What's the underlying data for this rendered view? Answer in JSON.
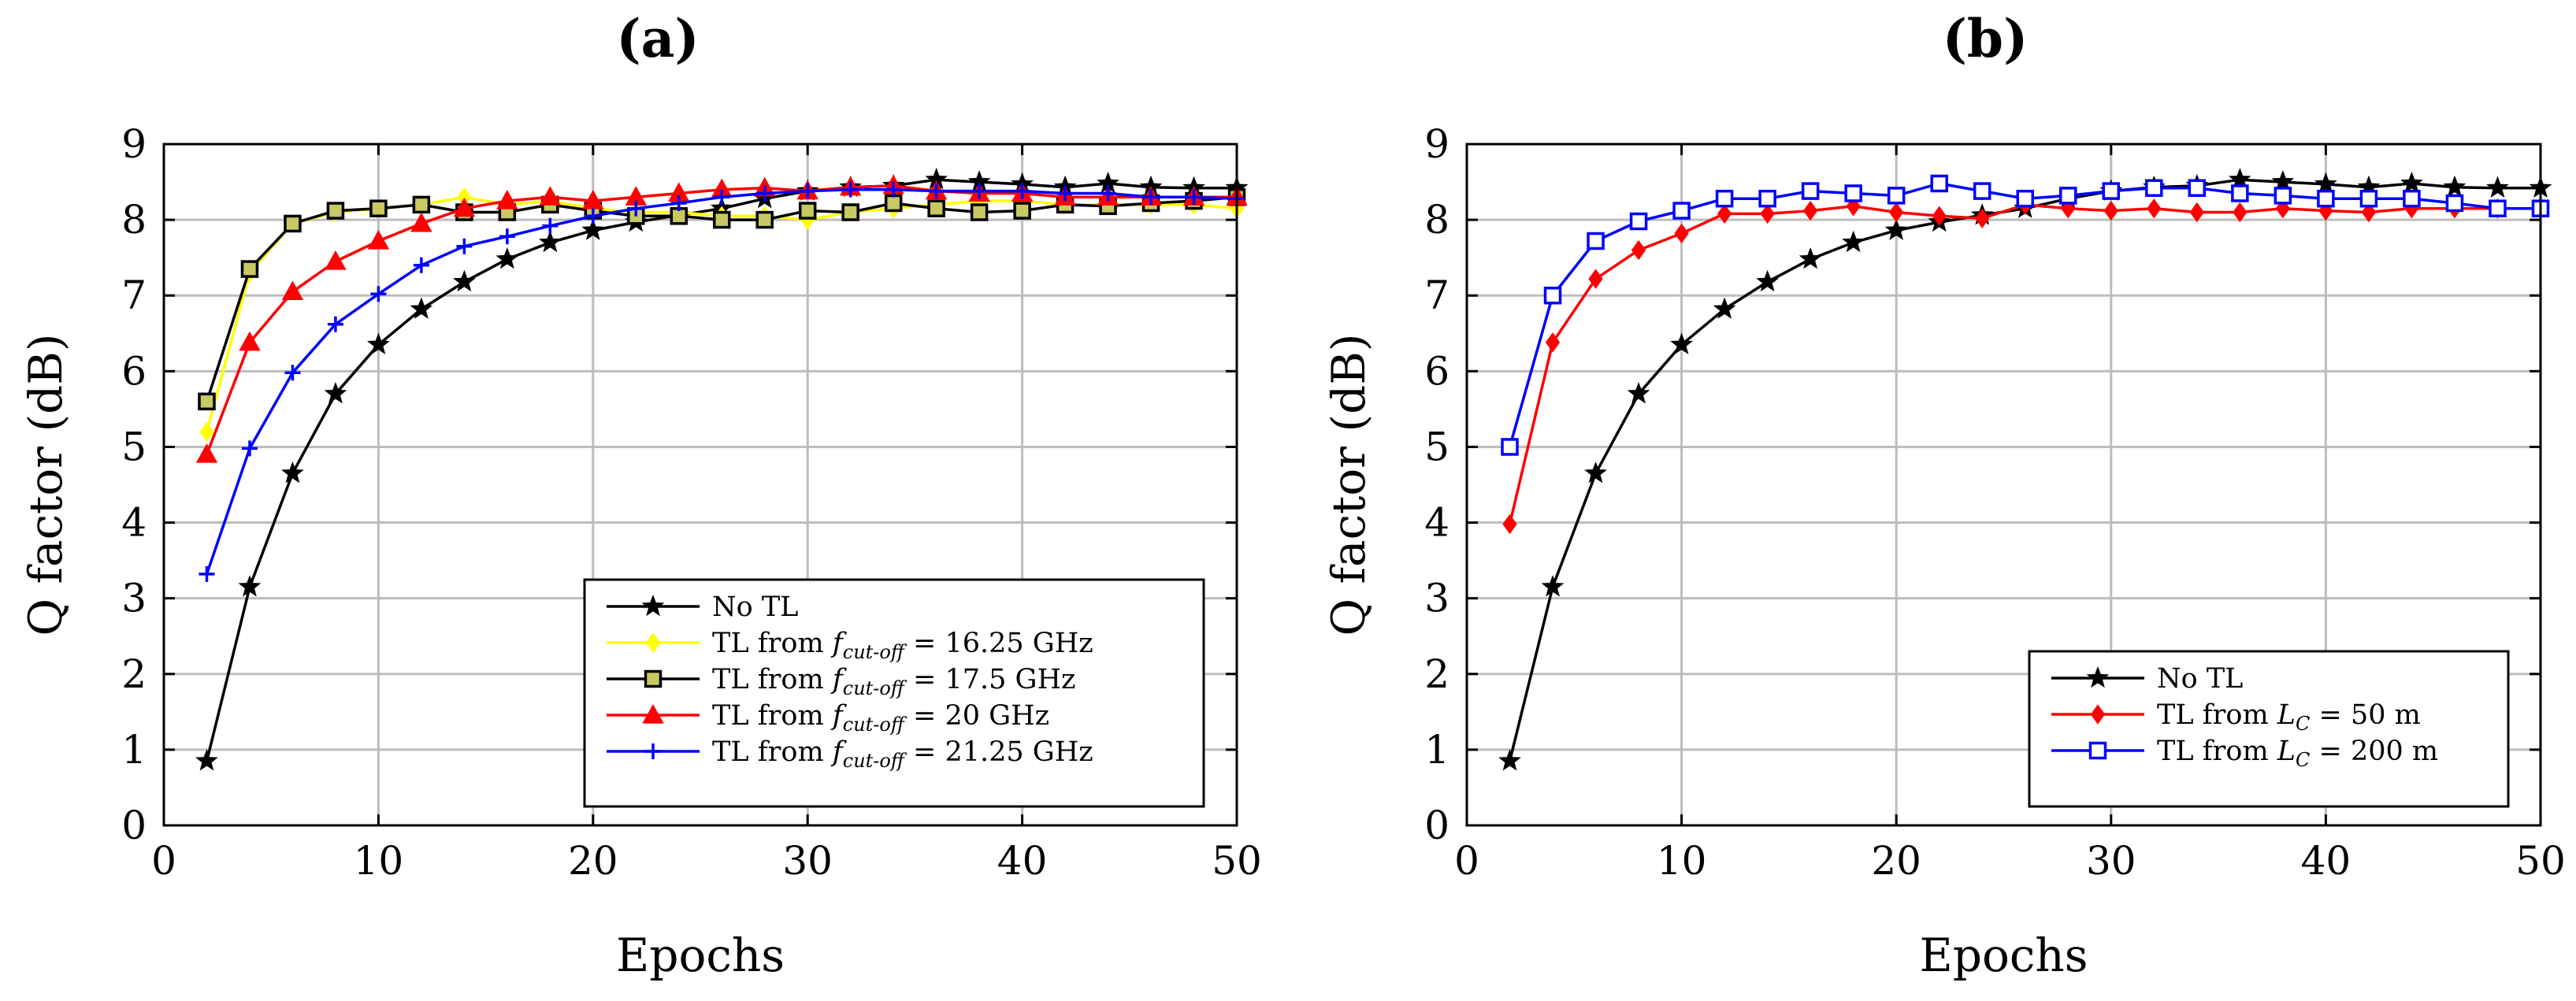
{
  "chart_data": [
    {
      "type": "line",
      "title": "(a)",
      "xlabel": "Epochs",
      "ylabel": "Q factor (dB)",
      "xlim": [
        0,
        50
      ],
      "ylim": [
        0,
        9
      ],
      "xticks": [
        0,
        10,
        20,
        30,
        40,
        50
      ],
      "yticks": [
        0,
        1,
        2,
        3,
        4,
        5,
        6,
        7,
        8,
        9
      ],
      "grid": true,
      "legend_position": "bottom-right",
      "x": [
        2,
        4,
        6,
        8,
        10,
        12,
        14,
        16,
        18,
        20,
        22,
        24,
        26,
        28,
        30,
        32,
        34,
        36,
        38,
        40,
        42,
        44,
        46,
        48,
        50
      ],
      "series": [
        {
          "name": "No TL",
          "legend": {
            "pre": "No TL",
            "sub": "",
            "post": ""
          },
          "color": "#000000",
          "marker": "star",
          "values": [
            0.85,
            3.15,
            4.65,
            5.7,
            6.35,
            6.82,
            7.18,
            7.48,
            7.7,
            7.86,
            7.97,
            8.06,
            8.15,
            8.28,
            8.38,
            8.43,
            8.45,
            8.53,
            8.5,
            8.47,
            8.43,
            8.48,
            8.43,
            8.42,
            8.42
          ]
        },
        {
          "name": "TL from f_cut-off = 16.25 GHz",
          "legend": {
            "pre": "TL from ",
            "sub": "cut-off",
            "post": " = 16.25 GHz"
          },
          "color": "#ffff00",
          "marker": "diamond",
          "values": [
            5.2,
            7.3,
            7.95,
            8.1,
            8.15,
            8.2,
            8.3,
            8.2,
            8.25,
            8.15,
            8.1,
            8.1,
            8.05,
            8.05,
            8.0,
            8.1,
            8.15,
            8.2,
            8.25,
            8.25,
            8.2,
            8.2,
            8.2,
            8.2,
            8.15
          ]
        },
        {
          "name": "TL from f_cut-off = 17.5 GHz",
          "legend": {
            "pre": "TL from ",
            "sub": "cut-off",
            "post": " = 17.5 GHz"
          },
          "color": "#000000",
          "fill": "#c8c864",
          "marker": "square",
          "values": [
            5.6,
            7.35,
            7.95,
            8.12,
            8.15,
            8.2,
            8.1,
            8.1,
            8.2,
            8.12,
            8.05,
            8.05,
            8.0,
            8.0,
            8.12,
            8.1,
            8.22,
            8.15,
            8.1,
            8.12,
            8.2,
            8.18,
            8.22,
            8.25,
            8.3
          ]
        },
        {
          "name": "TL from f_cut-off = 20 GHz",
          "legend": {
            "pre": "TL from ",
            "sub": "cut-off",
            "post": " = 20 GHz"
          },
          "color": "#ff0000",
          "marker": "triangle",
          "values": [
            4.9,
            6.38,
            7.05,
            7.45,
            7.72,
            7.95,
            8.15,
            8.25,
            8.3,
            8.25,
            8.3,
            8.35,
            8.4,
            8.42,
            8.38,
            8.43,
            8.45,
            8.38,
            8.35,
            8.35,
            8.3,
            8.3,
            8.3,
            8.3,
            8.3
          ]
        },
        {
          "name": "TL from f_cut-off = 21.25 GHz",
          "legend": {
            "pre": "TL from ",
            "sub": "cut-off",
            "post": " = 21.25 GHz"
          },
          "color": "#0000ff",
          "marker": "plus",
          "values": [
            3.32,
            4.98,
            5.98,
            6.62,
            7.02,
            7.4,
            7.65,
            7.78,
            7.92,
            8.05,
            8.15,
            8.22,
            8.3,
            8.35,
            8.38,
            8.4,
            8.4,
            8.38,
            8.38,
            8.38,
            8.35,
            8.35,
            8.3,
            8.3,
            8.28
          ]
        }
      ]
    },
    {
      "type": "line",
      "title": "(b)",
      "xlabel": "Epochs",
      "ylabel": "Q factor (dB)",
      "xlim": [
        0,
        50
      ],
      "ylim": [
        0,
        9
      ],
      "xticks": [
        0,
        10,
        20,
        30,
        40,
        50
      ],
      "yticks": [
        0,
        1,
        2,
        3,
        4,
        5,
        6,
        7,
        8,
        9
      ],
      "grid": true,
      "legend_position": "bottom-right",
      "x": [
        2,
        4,
        6,
        8,
        10,
        12,
        14,
        16,
        18,
        20,
        22,
        24,
        26,
        28,
        30,
        32,
        34,
        36,
        38,
        40,
        42,
        44,
        46,
        48,
        50
      ],
      "series": [
        {
          "name": "No TL",
          "legend": {
            "pre": "No TL",
            "sub": "",
            "post": ""
          },
          "color": "#000000",
          "marker": "star",
          "values": [
            0.85,
            3.15,
            4.65,
            5.7,
            6.35,
            6.82,
            7.18,
            7.48,
            7.7,
            7.86,
            7.97,
            8.06,
            8.15,
            8.28,
            8.38,
            8.43,
            8.45,
            8.53,
            8.5,
            8.47,
            8.43,
            8.48,
            8.43,
            8.42,
            8.42
          ]
        },
        {
          "name": "TL from L_C = 50 m",
          "legend": {
            "pre": "TL from ",
            "sub": "C",
            "post": " = 50 m"
          },
          "color": "#ff0000",
          "marker": "diamond",
          "values": [
            3.98,
            6.38,
            7.22,
            7.6,
            7.82,
            8.08,
            8.08,
            8.12,
            8.18,
            8.1,
            8.05,
            8.02,
            8.2,
            8.15,
            8.12,
            8.15,
            8.1,
            8.1,
            8.15,
            8.12,
            8.1,
            8.15,
            8.15,
            8.15,
            8.15
          ]
        },
        {
          "name": "TL from L_C = 200 m",
          "legend": {
            "pre": "TL from ",
            "sub": "C",
            "post": " = 200 m"
          },
          "color": "#0000ff",
          "marker": "square",
          "values": [
            5.0,
            7.0,
            7.72,
            7.98,
            8.12,
            8.28,
            8.28,
            8.38,
            8.35,
            8.32,
            8.48,
            8.38,
            8.28,
            8.32,
            8.38,
            8.42,
            8.42,
            8.35,
            8.32,
            8.28,
            8.28,
            8.28,
            8.22,
            8.15,
            8.15
          ]
        }
      ]
    }
  ]
}
